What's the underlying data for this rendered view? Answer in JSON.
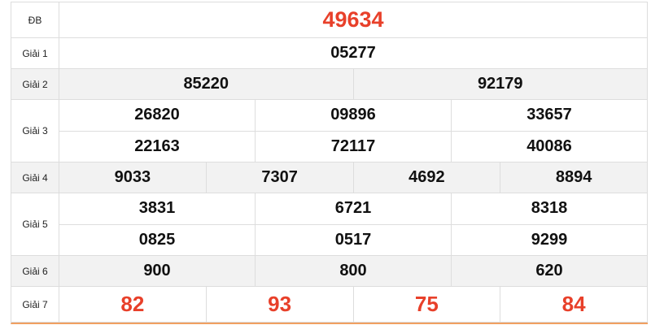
{
  "colors": {
    "highlight": "#e8402a",
    "alt_row": "#f2f2f2",
    "bottom_border": "#f0a060"
  },
  "rows": [
    {
      "label": "ĐB",
      "lines": [
        [
          "49634"
        ]
      ]
    },
    {
      "label": "Giải 1",
      "lines": [
        [
          "05277"
        ]
      ]
    },
    {
      "label": "Giải 2",
      "lines": [
        [
          "85220",
          "92179"
        ]
      ]
    },
    {
      "label": "Giải 3",
      "lines": [
        [
          "26820",
          "09896",
          "33657"
        ],
        [
          "22163",
          "72117",
          "40086"
        ]
      ]
    },
    {
      "label": "Giải 4",
      "lines": [
        [
          "9033",
          "7307",
          "4692",
          "8894"
        ]
      ]
    },
    {
      "label": "Giải 5",
      "lines": [
        [
          "3831",
          "6721",
          "8318"
        ],
        [
          "0825",
          "0517",
          "9299"
        ]
      ]
    },
    {
      "label": "Giải 6",
      "lines": [
        [
          "900",
          "800",
          "620"
        ]
      ]
    },
    {
      "label": "Giải 7",
      "lines": [
        [
          "82",
          "93",
          "75",
          "84"
        ]
      ]
    }
  ]
}
